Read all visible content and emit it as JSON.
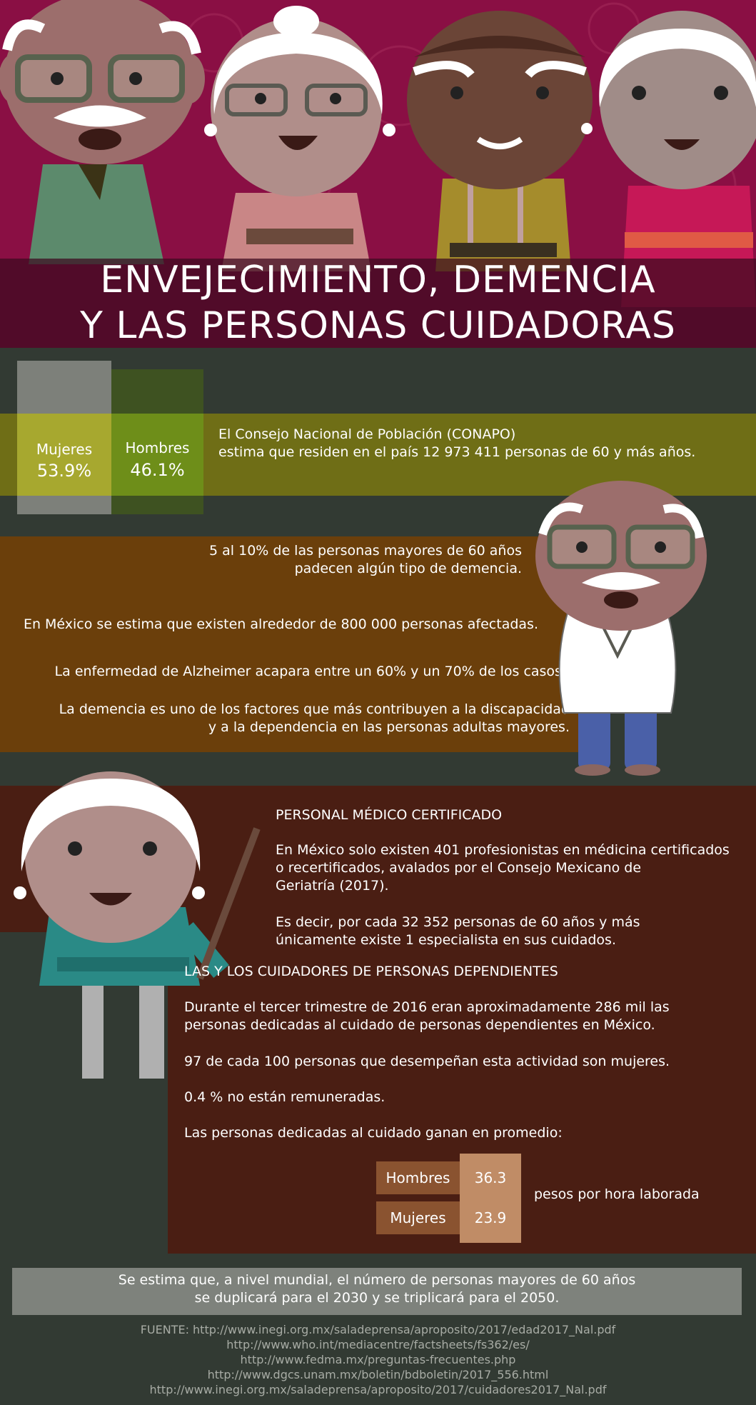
{
  "header": {
    "title_line1": "ENVEJECIMIENTO, DEMENCIA",
    "title_line2": "Y LAS PERSONAS CUIDADORAS"
  },
  "gender": {
    "women_label": "Mujeres",
    "women_value": "53.9%",
    "men_label": "Hombres",
    "men_value": "46.1%",
    "conapo_line1": "El Consejo Nacional de Población (CONAPO)",
    "conapo_line2": "estima que residen en el país 12 973 411 personas de 60 y más años."
  },
  "dementia": {
    "stat1_line1": "5 al 10% de las personas mayores de 60 años",
    "stat1_line2": "padecen algún tipo de demencia.",
    "stat2": "En México se estima que existen alrededor de 800 000 personas afectadas.",
    "stat3": "La enfermedad de Alzheimer acapara entre un 60% y un 70% de los casos.",
    "stat4_line1": "La demencia es uno de los factores que más contribuyen a la discapacidad",
    "stat4_line2": "y a la dependencia en las personas adultas mayores."
  },
  "medical": {
    "title": "PERSONAL  MÉDICO CERTIFICADO",
    "p1_line1": "En México solo existen 401 profesionistas en médicina certificados",
    "p1_line2": "o recertificados, avalados por el Consejo Mexicano de",
    "p1_line3": "Geriatría (2017).",
    "p2_line1": "Es decir, por cada 32 352 personas de 60 años y más",
    "p2_line2": "únicamente existe 1 especialista en sus cuidados."
  },
  "caregivers": {
    "title": "LAS Y LOS CUIDADORES DE PERSONAS DEPENDIENTES",
    "p1_line1": "Durante el tercer trimestre de 2016 eran aproximadamente 286 mil las",
    "p1_line2": "personas dedicadas al cuidado de personas dependientes en México.",
    "p2": "97 de cada 100 personas que desempeñan esta actividad son mujeres.",
    "p3": "0.4 %  no están remuneradas.",
    "p4": "Las personas dedicadas al cuidado ganan en promedio:",
    "wages": [
      {
        "label": "Hombres",
        "value": "36.3"
      },
      {
        "label": "Mujeres",
        "value": "23.9"
      }
    ],
    "wage_unit": "pesos por hora laborada"
  },
  "footer": {
    "note_line1": "Se estima que, a nivel mundial, el número de personas mayores de 60 años",
    "note_line2": "se duplicará para el 2030 y se triplicará para el 2050.",
    "sources": [
      "FUENTE: http://www.inegi.org.mx/saladeprensa/aproposito/2017/edad2017_Nal.pdf",
      "http://www.who.int/mediacentre/factsheets/fs362/es/",
      "http://www.fedma.mx/preguntas-frecuentes.php",
      "http://www.dgcs.unam.mx/boletin/bdboletin/2017_556.html",
      "http://www.inegi.org.mx/saladeprensa/aproposito/2017/cuidadores2017_Nal.pdf"
    ]
  },
  "colors": {
    "header_bg": "#8a0f44",
    "page_bg": "#323a33",
    "olive_band": "#6f6e16",
    "orange_band": "#6b3f0b",
    "brown_band": "#4a1e13",
    "note_box": "#7e827c"
  }
}
